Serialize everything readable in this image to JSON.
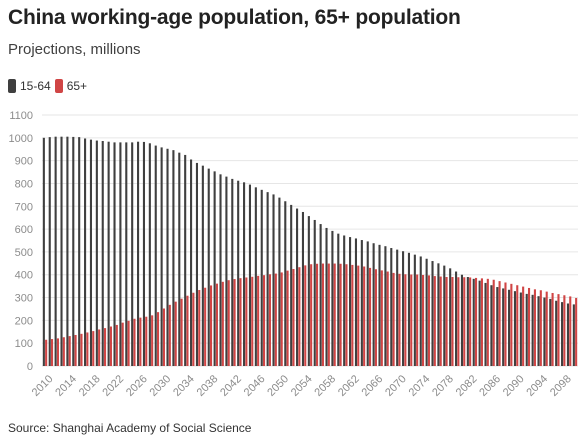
{
  "header": {
    "title": "China working-age population, 65+ population",
    "subtitle": "Projections, millions"
  },
  "footer": {
    "source": "Source: Shanghai Academy of Social Science"
  },
  "colors": {
    "working_age": "#3f3f3f",
    "elderly": "#d04545",
    "grid": "#e6e6e6",
    "axis_text": "#8c8c8c"
  },
  "chart_data": {
    "type": "bar",
    "title": "China working-age population, 65+ population",
    "subtitle": "Projections, millions",
    "xlabel": "",
    "ylabel": "",
    "ylim": [
      0,
      1100
    ],
    "yticks": [
      0,
      100,
      200,
      300,
      400,
      500,
      600,
      700,
      800,
      900,
      1000,
      1100
    ],
    "xticks": [
      "2010",
      "2014",
      "2018",
      "2022",
      "2026",
      "2030",
      "2034",
      "2038",
      "2042",
      "2046",
      "2050",
      "2054",
      "2058",
      "2062",
      "2066",
      "2070",
      "2074",
      "2078",
      "2082",
      "2086",
      "2090",
      "2094",
      "2098"
    ],
    "grid": true,
    "legend_position": "top-left",
    "categories": [
      2010,
      2011,
      2012,
      2013,
      2014,
      2015,
      2016,
      2017,
      2018,
      2019,
      2020,
      2021,
      2022,
      2023,
      2024,
      2025,
      2026,
      2027,
      2028,
      2029,
      2030,
      2031,
      2032,
      2033,
      2034,
      2035,
      2036,
      2037,
      2038,
      2039,
      2040,
      2041,
      2042,
      2043,
      2044,
      2045,
      2046,
      2047,
      2048,
      2049,
      2050,
      2051,
      2052,
      2053,
      2054,
      2055,
      2056,
      2057,
      2058,
      2059,
      2060,
      2061,
      2062,
      2063,
      2064,
      2065,
      2066,
      2067,
      2068,
      2069,
      2070,
      2071,
      2072,
      2073,
      2074,
      2075,
      2076,
      2077,
      2078,
      2079,
      2080,
      2081,
      2082,
      2083,
      2084,
      2085,
      2086,
      2087,
      2088,
      2089,
      2090,
      2091,
      2092,
      2093,
      2094,
      2095,
      2096,
      2097,
      2098,
      2099,
      2100
    ],
    "series": [
      {
        "name": "15-64",
        "values": [
          1000,
          1003,
          1005,
          1005,
          1005,
          1004,
          1003,
          997,
          992,
          988,
          986,
          983,
          980,
          980,
          980,
          980,
          983,
          982,
          976,
          966,
          958,
          952,
          946,
          935,
          925,
          905,
          890,
          878,
          865,
          853,
          840,
          830,
          820,
          812,
          805,
          795,
          783,
          772,
          762,
          752,
          738,
          722,
          706,
          690,
          675,
          657,
          640,
          622,
          605,
          592,
          580,
          572,
          565,
          559,
          552,
          546,
          538,
          531,
          525,
          517,
          510,
          503,
          496,
          488,
          480,
          470,
          460,
          450,
          440,
          428,
          414,
          400,
          390,
          382,
          374,
          364,
          354,
          346,
          340,
          334,
          328,
          322,
          316,
          312,
          306,
          300,
          294,
          286,
          280,
          274,
          270
        ]
      },
      {
        "name": "65+",
        "values": [
          115,
          118,
          121,
          126,
          131,
          136,
          141,
          147,
          153,
          160,
          166,
          173,
          180,
          190,
          198,
          207,
          212,
          216,
          222,
          236,
          252,
          268,
          282,
          295,
          308,
          321,
          333,
          343,
          353,
          361,
          369,
          376,
          381,
          385,
          388,
          391,
          395,
          398,
          402,
          405,
          410,
          418,
          425,
          433,
          441,
          446,
          448,
          449,
          449,
          449,
          448,
          446,
          443,
          440,
          436,
          430,
          424,
          419,
          414,
          408,
          404,
          402,
          401,
          401,
          399,
          397,
          394,
          392,
          390,
          390,
          389,
          389,
          388,
          386,
          384,
          382,
          378,
          372,
          366,
          360,
          354,
          348,
          342,
          336,
          332,
          326,
          320,
          315,
          310,
          305,
          298
        ]
      }
    ]
  }
}
